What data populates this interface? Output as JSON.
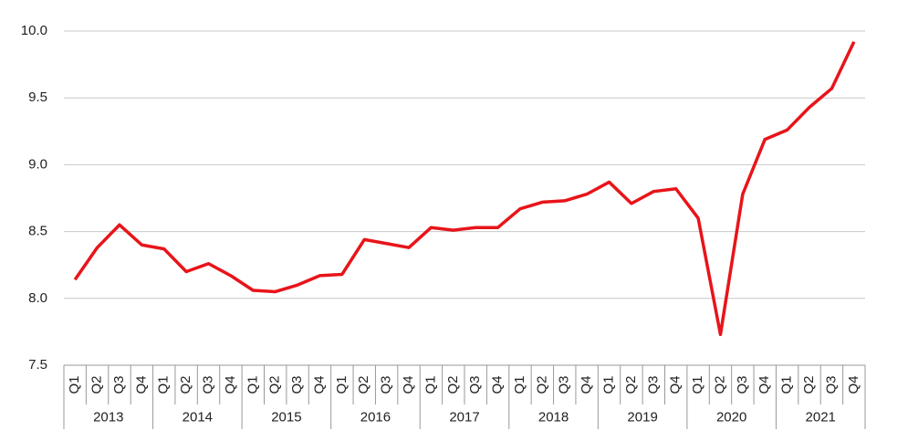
{
  "chart_data": {
    "type": "line",
    "categories": [
      "Q1",
      "Q2",
      "Q3",
      "Q4",
      "Q1",
      "Q2",
      "Q3",
      "Q4",
      "Q1",
      "Q2",
      "Q3",
      "Q4",
      "Q1",
      "Q2",
      "Q3",
      "Q4",
      "Q1",
      "Q2",
      "Q3",
      "Q4",
      "Q1",
      "Q2",
      "Q3",
      "Q4",
      "Q1",
      "Q2",
      "Q3",
      "Q4",
      "Q1",
      "Q2",
      "Q3",
      "Q4",
      "Q1",
      "Q2",
      "Q3",
      "Q4"
    ],
    "category_groups": [
      "2013",
      "2014",
      "2015",
      "2016",
      "2017",
      "2018",
      "2019",
      "2020",
      "2021"
    ],
    "series": [
      {
        "color": "#e8141a",
        "values": [
          8.14,
          8.38,
          8.55,
          8.4,
          8.37,
          8.2,
          8.26,
          8.17,
          8.06,
          8.05,
          8.1,
          8.17,
          8.18,
          8.44,
          8.41,
          8.38,
          8.53,
          8.51,
          8.53,
          8.53,
          8.67,
          8.72,
          8.73,
          8.78,
          8.87,
          8.71,
          8.8,
          8.82,
          8.6,
          7.73,
          8.78,
          9.19,
          9.26,
          9.43,
          9.57,
          9.92
        ]
      }
    ],
    "ylim": [
      7.5,
      10
    ],
    "yticks": [
      7.5,
      {
        "value": 8,
        "label": "8.0"
      },
      8.5,
      {
        "value": 9,
        "label": "9.0"
      },
      9.5,
      {
        "value": 10,
        "label": "10.0"
      }
    ],
    "grid": true
  }
}
